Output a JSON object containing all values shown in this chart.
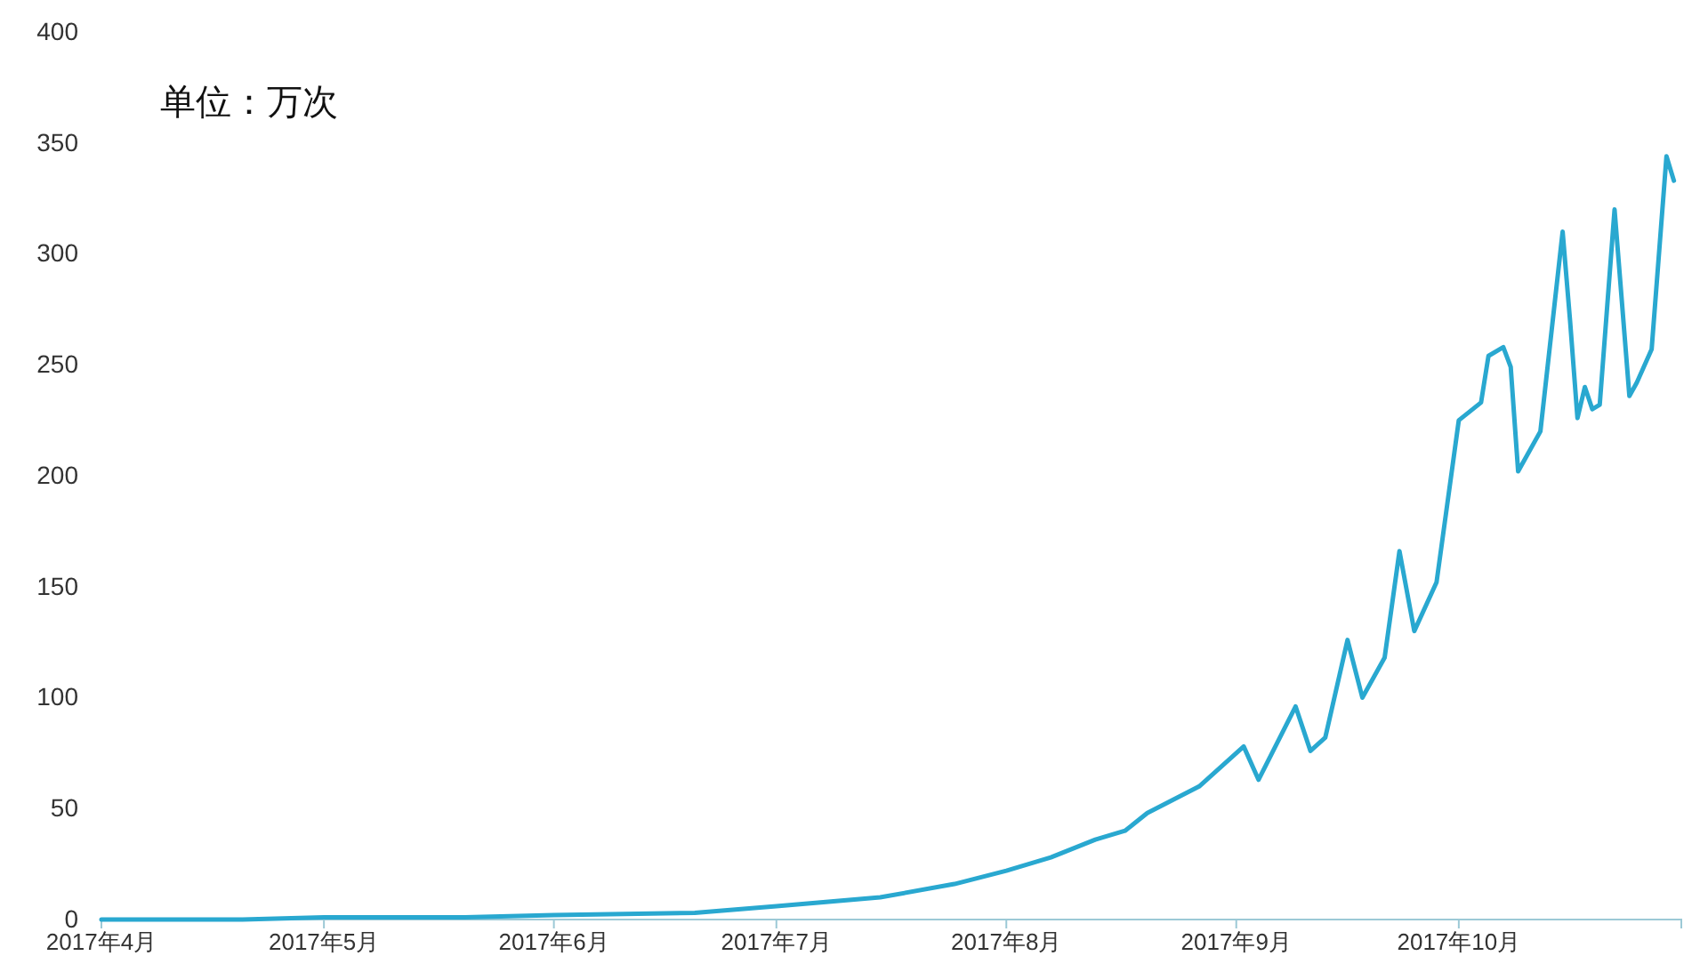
{
  "chart_data": {
    "type": "line",
    "annotations": [
      "单位：万次"
    ],
    "x": [
      "2017-04-01",
      "2017-04-20",
      "2017-05-01",
      "2017-05-20",
      "2017-06-01",
      "2017-06-20",
      "2017-07-01",
      "2017-07-15",
      "2017-07-25",
      "2017-08-01",
      "2017-08-07",
      "2017-08-13",
      "2017-08-17",
      "2017-08-20",
      "2017-08-27",
      "2017-09-02",
      "2017-09-04",
      "2017-09-09",
      "2017-09-11",
      "2017-09-13",
      "2017-09-16",
      "2017-09-18",
      "2017-09-21",
      "2017-09-23",
      "2017-09-25",
      "2017-09-28",
      "2017-10-01",
      "2017-10-04",
      "2017-10-05",
      "2017-10-07",
      "2017-10-08",
      "2017-10-09",
      "2017-10-12",
      "2017-10-15",
      "2017-10-16",
      "2017-10-17",
      "2017-10-18",
      "2017-10-19",
      "2017-10-20",
      "2017-10-22",
      "2017-10-24",
      "2017-10-25",
      "2017-10-27",
      "2017-10-29",
      "2017-10-30"
    ],
    "series": [
      {
        "color": "#29a8d0",
        "values": [
          0,
          0,
          1,
          1,
          2,
          3,
          6,
          10,
          16,
          22,
          28,
          36,
          40,
          48,
          60,
          78,
          63,
          96,
          76,
          82,
          126,
          100,
          118,
          166,
          130,
          152,
          225,
          233,
          254,
          258,
          249,
          202,
          220,
          310,
          270,
          226,
          240,
          230,
          232,
          320,
          236,
          242,
          257,
          344,
          333
        ]
      }
    ],
    "xlim": [
      "2017-04-01",
      "2017-10-31"
    ],
    "xticks": [
      {
        "value": "2017-04-01",
        "label": "2017年4月"
      },
      {
        "value": "2017-05-01",
        "label": "2017年5月"
      },
      {
        "value": "2017-06-01",
        "label": "2017年6月"
      },
      {
        "value": "2017-07-01",
        "label": "2017年7月"
      },
      {
        "value": "2017-08-01",
        "label": "2017年8月"
      },
      {
        "value": "2017-09-01",
        "label": "2017年9月"
      },
      {
        "value": "2017-10-01",
        "label": "2017年10月"
      }
    ],
    "ylim": [
      0,
      400
    ],
    "yticks": [
      0,
      50,
      100,
      150,
      200,
      250,
      300,
      350,
      400
    ],
    "grid": false,
    "marker": "none",
    "line_style": "solid"
  }
}
